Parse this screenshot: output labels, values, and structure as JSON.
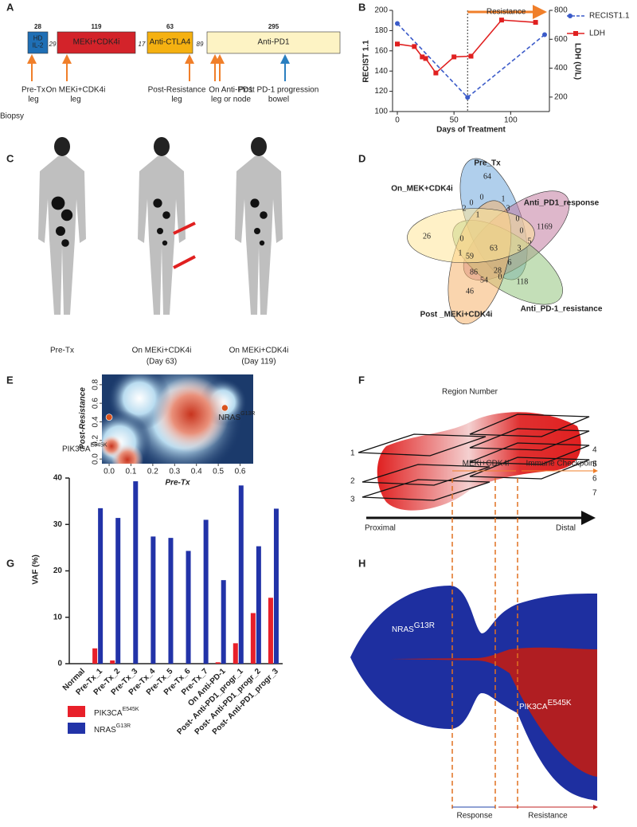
{
  "panel_labels": [
    "A",
    "B",
    "C",
    "D",
    "E",
    "F",
    "G",
    "H"
  ],
  "timeline": {
    "segments": [
      {
        "days": 28,
        "lines": [
          "HD",
          "IL-2"
        ],
        "color": "#1f6fb5"
      },
      {
        "days": 119,
        "lines": [
          "MEKi+CDK4i"
        ],
        "color": "#d3232a"
      },
      {
        "days": 63,
        "lines": [
          "Anti-CTLA4"
        ],
        "color": "#f5b111"
      },
      {
        "days": 295,
        "lines": [
          "Anti-PD1"
        ],
        "color": "#fdf3c4"
      }
    ],
    "gaps": [
      29,
      17,
      89
    ],
    "biopsy_label": "Biopsy",
    "biopsies": [
      [
        "Pre-Tx",
        "leg"
      ],
      [
        "On MEKi+CDK4i",
        "leg"
      ],
      [
        "Post-Resistance",
        "leg"
      ],
      [
        "On Anti-PD1",
        "leg or node"
      ],
      [
        "Post PD-1 progression",
        "bowel"
      ]
    ]
  },
  "scans": {
    "labels": [
      [
        "Pre-Tx"
      ],
      [
        "On MEKi+CDK4i",
        "(Day 63)"
      ],
      [
        "On MEKi+CDK4i",
        "(Day 119)"
      ]
    ]
  },
  "venn": {
    "sets": [
      "Pre_Tx",
      "Anti_PD1_response",
      "Anti_PD-1_resistance",
      "Post _MEKi+CDK4i",
      "On_MEK+CDK4i"
    ],
    "counts": [
      64,
      1169,
      118,
      46,
      26,
      63,
      3,
      1,
      0,
      0,
      2,
      0,
      6,
      3,
      0,
      59,
      86,
      54,
      28,
      1,
      0,
      5,
      0,
      1
    ]
  },
  "region": {
    "title": "Region Number",
    "numbers": [
      1,
      2,
      3,
      4,
      5,
      6,
      7
    ],
    "proximal": "Proximal",
    "distal": "Distal"
  },
  "fishplot": {
    "phases": [
      "MEKi+CDK4i",
      "Immune Checkpoint"
    ],
    "outcomes": [
      "Response",
      "Resistance"
    ],
    "clones": [
      {
        "gene": "NRAS",
        "mutation": "G13R"
      },
      {
        "gene": "PIK3CA",
        "mutation": "E545K"
      }
    ]
  },
  "chart_data": [
    {
      "type": "line",
      "x_label": "Days of Treatment",
      "y_label": "RECIST 1.1",
      "y2_label": "LDH (U/L)",
      "xlim": [
        0,
        130
      ],
      "xticks": [
        0,
        50,
        100
      ],
      "ylim": [
        100,
        200
      ],
      "yticks": [
        100,
        120,
        140,
        160,
        180,
        200
      ],
      "y2lim": [
        100,
        800
      ],
      "y2ticks": [
        200,
        400,
        600,
        800
      ],
      "resistance": {
        "label": "Resistance",
        "x": [
          62,
          130
        ]
      },
      "series": [
        {
          "name": "RECIST1.1",
          "color": "#3b5bc9",
          "dashed": true,
          "x": [
            0,
            62,
            130
          ],
          "values": [
            187,
            114,
            176
          ]
        },
        {
          "name": "LDH",
          "color": "#e02020",
          "dashed": false,
          "axis": "y2",
          "x": [
            0,
            15,
            22,
            25,
            34,
            50,
            65,
            92,
            122
          ],
          "values": [
            567,
            550,
            478,
            467,
            367,
            478,
            483,
            733,
            717
          ]
        }
      ]
    },
    {
      "type": "scatter",
      "x_label": "Pre-Tx",
      "y_label": "Post-Resistance",
      "color": "#d9531e",
      "xlim": [
        -0.033,
        0.66
      ],
      "xticks": [
        {
          "value": 0,
          "label": "0.0"
        },
        0.1,
        0.2,
        0.3,
        0.4,
        0.5,
        0.6
      ],
      "ylim": [
        -0.05,
        0.91
      ],
      "yticks": [
        {
          "value": 0,
          "label": "0.0"
        },
        0.2,
        0.4,
        0.6,
        0.8
      ],
      "points": [
        {
          "gene": "NRAS",
          "mutation": "G13R",
          "x": 0.53,
          "y": 0.55
        },
        {
          "gene": "PIK3CA",
          "mutation": "E545K",
          "x": 0,
          "y": 0.45
        }
      ]
    },
    {
      "type": "bar",
      "y_label": "VAF (%)",
      "ylim": [
        0,
        40
      ],
      "yticks": [
        0,
        10,
        20,
        30,
        40
      ],
      "categories": [
        "Normal",
        "Pre-Tx_1",
        "Pre-Tx_2",
        "Pre-Tx_3",
        "Pre-Tx_4",
        "Pre-Tx_5",
        "Pre-Tx_6",
        "Pre-Tx_7",
        "On Anti-PD-1",
        "Post- Anti-PD1_progr_1",
        "Post- Anti-PD1_progr_2",
        "Post- Anti-PD1_progr_3"
      ],
      "category_colors": [
        "#222",
        "#e02020",
        "#e02020",
        "#e02020",
        "#222",
        "#222",
        "#222",
        "#222",
        "#222",
        "#222",
        "#222",
        "#222"
      ],
      "series": [
        {
          "name": "PIK3CA",
          "mutation": "E545K",
          "color": "#e8202a",
          "values": [
            0,
            3.3,
            0.7,
            0,
            0,
            0,
            0,
            0,
            0.3,
            4.4,
            10.9,
            14.2
          ]
        },
        {
          "name": "NRAS",
          "mutation": "G13R",
          "color": "#2233a8",
          "values": [
            0,
            33.5,
            31.4,
            39.3,
            27.4,
            27.1,
            24.3,
            31,
            18,
            38.4,
            25.3,
            33.4
          ]
        }
      ]
    }
  ]
}
